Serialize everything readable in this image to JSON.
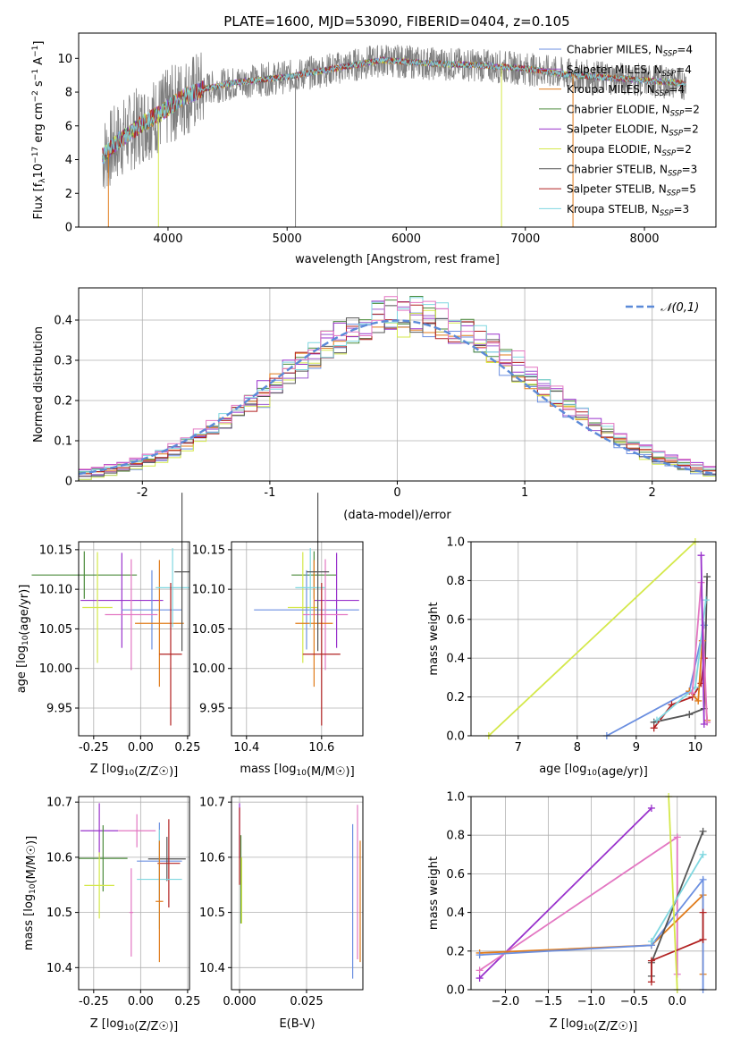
{
  "figure": {
    "title": "PLATE=1600, MJD=53090, FIBERID=0404, z=0.105"
  },
  "chart_data": [
    {
      "type": "line",
      "panel": "spectrum",
      "xlabel": "wavelength [Angstrom, rest frame]",
      "ylabel_parts": [
        "Flux [f",
        "λ",
        "10",
        "−17",
        " erg cm",
        "−2",
        " s",
        "−1",
        " A",
        "−1",
        "]"
      ],
      "xlim": [
        3250,
        8600
      ],
      "ylim": [
        0,
        11.5
      ],
      "xticks": [
        4000,
        5000,
        6000,
        7000,
        8000
      ],
      "yticks": [
        0,
        2,
        4,
        6,
        8,
        10
      ],
      "continuum_x": [
        3450,
        3600,
        3800,
        3950,
        4100,
        4300,
        4600,
        5000,
        5400,
        5800,
        6200,
        6600,
        7000,
        7400,
        7800,
        8200,
        8350
      ],
      "continuum_y": [
        4.2,
        5.2,
        6.2,
        6.8,
        7.6,
        8.2,
        8.6,
        8.9,
        9.4,
        9.9,
        9.7,
        9.6,
        9.4,
        9.0,
        8.8,
        8.6,
        8.5
      ],
      "legend": [
        {
          "pre": "Chabrier MILES, N",
          "sub": "SSP",
          "post": "=4",
          "color": "#6b8fe0"
        },
        {
          "pre": "Salpeter MILES, N",
          "sub": "SSP",
          "post": "=4",
          "color": "#9b59d0"
        },
        {
          "pre": "Kroupa MILES, N",
          "sub": "SSP",
          "post": "=4",
          "color": "#e07b1a"
        },
        {
          "pre": "Chabrier ELODIE, N",
          "sub": "SSP",
          "post": "=2",
          "color": "#4b8b3b"
        },
        {
          "pre": "Salpeter ELODIE, N",
          "sub": "SSP",
          "post": "=2",
          "color": "#9932cc"
        },
        {
          "pre": "Kroupa ELODIE, N",
          "sub": "SSP",
          "post": "=2",
          "color": "#d4e84a"
        },
        {
          "pre": "Chabrier STELIB, N",
          "sub": "SSP",
          "post": "=3",
          "color": "#555555"
        },
        {
          "pre": "Salpeter STELIB, N",
          "sub": "SSP",
          "post": "=5",
          "color": "#b22222"
        },
        {
          "pre": "Kroupa STELIB, N",
          "sub": "SSP",
          "post": "=3",
          "color": "#7fd7e0"
        }
      ]
    },
    {
      "type": "line",
      "panel": "residuals",
      "xlabel": "(data-model)/error",
      "ylabel": "Normed distribution",
      "xlim": [
        -2.5,
        2.5
      ],
      "ylim": [
        0,
        0.48
      ],
      "xticks": [
        -2,
        -1,
        0,
        1,
        2
      ],
      "yticks": [
        0.0,
        0.1,
        0.2,
        0.3,
        0.4
      ],
      "grid": true,
      "legend_label": "𝒩(0,1)",
      "legend_position": "upper right",
      "gauss_color": "#5b8ad8",
      "series_colors": [
        "#6b8fe0",
        "#9b59d0",
        "#e07b1a",
        "#4b8b3b",
        "#9932cc",
        "#d4e84a",
        "#555555",
        "#b22222",
        "#7fd7e0",
        "#e377c2"
      ]
    },
    {
      "type": "scatter",
      "panel": "age_vs_Z",
      "xlabel": "Z [log10(Z/Z☉)]",
      "ylabel": "age  [log10(age/yr)]",
      "xlim": [
        -0.33,
        0.26
      ],
      "ylim": [
        9.915,
        10.16
      ],
      "xticks": [
        "-0.25",
        "0.00",
        "0.25"
      ],
      "yticks": [
        "9.95",
        "10.00",
        "10.05",
        "10.10",
        "10.15"
      ],
      "points": [
        {
          "x": -0.3,
          "y": 10.118,
          "xerr": 0.28,
          "yerr": 0.03,
          "color": "#4b8b3b"
        },
        {
          "x": -0.1,
          "y": 10.086,
          "xerr": 0.22,
          "yerr": 0.06,
          "color": "#9932cc"
        },
        {
          "x": -0.23,
          "y": 10.077,
          "xerr": 0.08,
          "yerr": 0.07,
          "color": "#d4e84a"
        },
        {
          "x": 0.06,
          "y": 10.074,
          "xerr": 0.16,
          "yerr": 0.05,
          "color": "#6b8fe0"
        },
        {
          "x": -0.05,
          "y": 10.068,
          "xerr": 0.14,
          "yerr": 0.07,
          "color": "#e377c2"
        },
        {
          "x": 0.1,
          "y": 10.057,
          "xerr": 0.13,
          "yerr": 0.08,
          "color": "#e07b1a"
        },
        {
          "x": 0.17,
          "y": 10.102,
          "xerr": 0.09,
          "yerr": 0.05,
          "color": "#7fd7e0"
        },
        {
          "x": 0.22,
          "y": 10.122,
          "xerr": 0.04,
          "yerr": 0.1,
          "color": "#555555"
        },
        {
          "x": 0.16,
          "y": 10.018,
          "xerr": 0.06,
          "yerr": 0.09,
          "color": "#b22222"
        }
      ]
    },
    {
      "type": "scatter",
      "panel": "age_vs_mass",
      "xlabel": "mass [log10(M/M☉)]",
      "xlim": [
        10.36,
        10.71
      ],
      "ylim": [
        9.915,
        10.16
      ],
      "xticks": [
        "10.4",
        "10.6"
      ],
      "yticks": [
        "9.95",
        "10.00",
        "10.05",
        "10.10",
        "10.15"
      ],
      "points": [
        {
          "x": 10.58,
          "y": 10.118,
          "xerr": 0.06,
          "yerr": 0.03,
          "color": "#4b8b3b"
        },
        {
          "x": 10.64,
          "y": 10.086,
          "xerr": 0.06,
          "yerr": 0.06,
          "color": "#9932cc"
        },
        {
          "x": 10.55,
          "y": 10.077,
          "xerr": 0.04,
          "yerr": 0.07,
          "color": "#d4e84a"
        },
        {
          "x": 10.56,
          "y": 10.074,
          "xerr": 0.14,
          "yerr": 0.05,
          "color": "#6b8fe0"
        },
        {
          "x": 10.61,
          "y": 10.068,
          "xerr": 0.06,
          "yerr": 0.07,
          "color": "#e377c2"
        },
        {
          "x": 10.58,
          "y": 10.057,
          "xerr": 0.05,
          "yerr": 0.08,
          "color": "#e07b1a"
        },
        {
          "x": 10.57,
          "y": 10.102,
          "xerr": 0.04,
          "yerr": 0.05,
          "color": "#7fd7e0"
        },
        {
          "x": 10.59,
          "y": 10.122,
          "xerr": 0.03,
          "yerr": 0.1,
          "color": "#555555"
        },
        {
          "x": 10.6,
          "y": 10.018,
          "xerr": 0.05,
          "yerr": 0.09,
          "color": "#b22222"
        }
      ]
    },
    {
      "type": "line",
      "panel": "massweight_vs_age",
      "xlabel": "age  [log10(age/yr)]",
      "ylabel": "mass weight",
      "xlim": [
        6.2,
        10.35
      ],
      "ylim": [
        0,
        1.0
      ],
      "xticks": [
        "7",
        "8",
        "9",
        "10"
      ],
      "yticks": [
        "0.0",
        "0.2",
        "0.4",
        "0.6",
        "0.8",
        "1.0"
      ],
      "grid": true,
      "series": [
        {
          "color": "#d4e84a",
          "x": [
            6.5,
            10.0
          ],
          "y": [
            0.0,
            1.0
          ]
        },
        {
          "color": "#6b8fe0",
          "x": [
            8.5,
            9.9,
            10.15
          ],
          "y": [
            0.0,
            0.23,
            0.57
          ]
        },
        {
          "color": "#555555",
          "x": [
            9.3,
            9.9,
            10.15,
            10.2
          ],
          "y": [
            0.07,
            0.11,
            0.14,
            0.82
          ]
        },
        {
          "color": "#b22222",
          "x": [
            9.3,
            9.6,
            9.95,
            10.1,
            10.15
          ],
          "y": [
            0.04,
            0.16,
            0.2,
            0.27,
            0.4
          ]
        },
        {
          "color": "#e07b1a",
          "x": [
            9.9,
            10.05,
            10.12,
            10.2
          ],
          "y": [
            0.23,
            0.18,
            0.49,
            0.08
          ]
        },
        {
          "color": "#7fd7e0",
          "x": [
            9.35,
            10.0,
            10.18
          ],
          "y": [
            0.08,
            0.25,
            0.7
          ]
        },
        {
          "color": "#e377c2",
          "x": [
            9.95,
            10.1,
            10.2
          ],
          "y": [
            0.22,
            0.79,
            0.07
          ]
        },
        {
          "color": "#9932cc",
          "x": [
            10.1,
            10.15
          ],
          "y": [
            0.93,
            0.06
          ]
        }
      ]
    },
    {
      "type": "scatter",
      "panel": "mass_vs_Z",
      "xlabel": "Z [log10(Z/Z☉)]",
      "ylabel": "mass [log10(M/M☉)]",
      "xlim": [
        -0.33,
        0.26
      ],
      "ylim": [
        10.36,
        10.71
      ],
      "xticks": [
        "-0.25",
        "0.00",
        "0.25"
      ],
      "yticks": [
        "10.4",
        "10.5",
        "10.6",
        "10.7"
      ],
      "points": [
        {
          "x": -0.22,
          "y": 10.648,
          "xerr": 0.1,
          "yerr": 0.05,
          "color": "#9932cc"
        },
        {
          "x": -0.02,
          "y": 10.648,
          "xerr": 0.1,
          "yerr": 0.03,
          "color": "#e377c2"
        },
        {
          "x": -0.2,
          "y": 10.598,
          "xerr": 0.13,
          "yerr": 0.06,
          "color": "#4b8b3b"
        },
        {
          "x": -0.22,
          "y": 10.549,
          "xerr": 0.08,
          "yerr": 0.06,
          "color": "#d4e84a"
        },
        {
          "x": 0.1,
          "y": 10.593,
          "xerr": 0.12,
          "yerr": 0.07,
          "color": "#6b8fe0"
        },
        {
          "x": 0.14,
          "y": 10.597,
          "xerr": 0.1,
          "yerr": 0.04,
          "color": "#555555"
        },
        {
          "x": 0.15,
          "y": 10.589,
          "xerr": 0.06,
          "yerr": 0.08,
          "color": "#b22222"
        },
        {
          "x": 0.1,
          "y": 10.56,
          "xerr": 0.12,
          "yerr": 0.09,
          "color": "#7fd7e0"
        },
        {
          "x": 0.1,
          "y": 10.52,
          "xerr": 0.02,
          "yerr": 0.11,
          "color": "#e07b1a"
        },
        {
          "x": -0.05,
          "y": 10.5,
          "xerr": 0.01,
          "yerr": 0.08,
          "color": "#e377c2"
        }
      ]
    },
    {
      "type": "scatter",
      "panel": "mass_vs_EBV",
      "xlabel": "E(B-V)",
      "xlim": [
        -0.003,
        0.046
      ],
      "ylim": [
        10.36,
        10.71
      ],
      "xticks": [
        "0.000",
        "0.025"
      ],
      "yticks": [
        "10.4",
        "10.5",
        "10.6",
        "10.7"
      ],
      "points": [
        {
          "x": 0.0,
          "y": 10.648,
          "xerr": 0,
          "yerr": 0.05,
          "color": "#9932cc"
        },
        {
          "x": 0.0,
          "y": 10.62,
          "xerr": 0,
          "yerr": 0.07,
          "color": "#b22222"
        },
        {
          "x": 0.0005,
          "y": 10.56,
          "xerr": 0,
          "yerr": 0.08,
          "color": "#4b8b3b"
        },
        {
          "x": 0.0008,
          "y": 10.54,
          "xerr": 0,
          "yerr": 0.06,
          "color": "#d4e84a"
        },
        {
          "x": 0.0422,
          "y": 10.52,
          "xerr": 0,
          "yerr": 0.14,
          "color": "#6b8fe0"
        },
        {
          "x": 0.044,
          "y": 10.555,
          "xerr": 0,
          "yerr": 0.14,
          "color": "#e377c2"
        },
        {
          "x": 0.045,
          "y": 10.52,
          "xerr": 0,
          "yerr": 0.11,
          "color": "#e07b1a"
        }
      ]
    },
    {
      "type": "line",
      "panel": "massweight_vs_Z",
      "xlabel": "Z [log10(Z/Z☉)]",
      "ylabel": "mass weight",
      "xlim": [
        -2.4,
        0.45
      ],
      "ylim": [
        0,
        1.0
      ],
      "xticks": [
        "−2.0",
        "−1.5",
        "−1.0",
        "−0.5",
        "0.0"
      ],
      "yticks": [
        "0.0",
        "0.2",
        "0.4",
        "0.6",
        "0.8",
        "1.0"
      ],
      "grid": true,
      "series": [
        {
          "color": "#9932cc",
          "x": [
            -2.3,
            -0.3
          ],
          "y": [
            0.06,
            0.94
          ]
        },
        {
          "color": "#e377c2",
          "x": [
            -2.3,
            0.0,
            0.0
          ],
          "y": [
            0.1,
            0.79,
            0.08
          ]
        },
        {
          "color": "#e07b1a",
          "x": [
            -2.3,
            -0.3,
            0.3,
            0.3
          ],
          "y": [
            0.19,
            0.23,
            0.49,
            0.08
          ]
        },
        {
          "color": "#6b8fe0",
          "x": [
            -2.3,
            -0.3,
            0.3,
            0.3
          ],
          "y": [
            0.18,
            0.23,
            0.57,
            0.0
          ]
        },
        {
          "color": "#555555",
          "x": [
            -0.3,
            -0.3,
            0.3
          ],
          "y": [
            0.07,
            0.14,
            0.82
          ]
        },
        {
          "color": "#7fd7e0",
          "x": [
            -0.3,
            0.3
          ],
          "y": [
            0.25,
            0.7
          ]
        },
        {
          "color": "#b22222",
          "x": [
            -0.3,
            -0.3,
            0.3,
            0.3
          ],
          "y": [
            0.04,
            0.15,
            0.26,
            0.4
          ]
        },
        {
          "color": "#d4e84a",
          "x": [
            -0.1,
            0.0
          ],
          "y": [
            1.0,
            0.0
          ]
        }
      ]
    }
  ]
}
